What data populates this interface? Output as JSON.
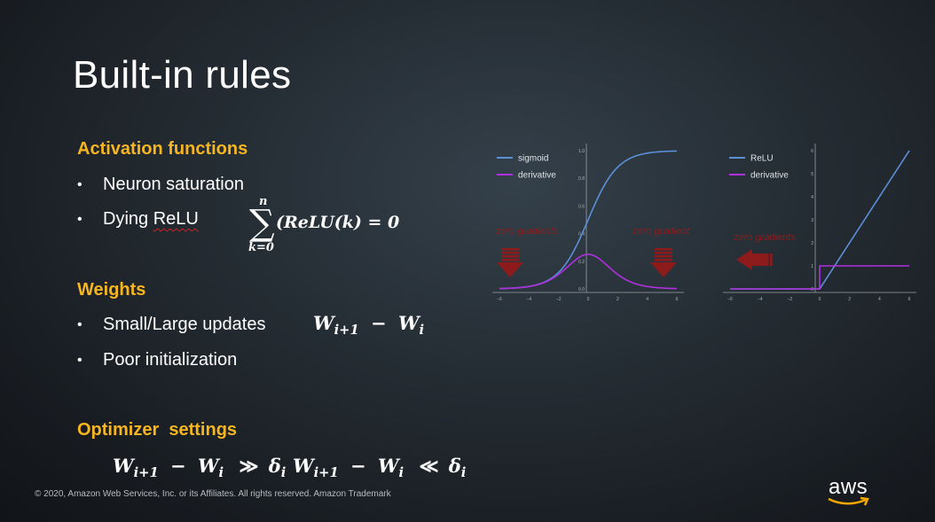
{
  "slide": {
    "title": "Built-in rules",
    "sections": {
      "activation": {
        "heading": "Activation functions",
        "bullets": [
          "Neuron saturation",
          "Dying ",
          "ReLU"
        ]
      },
      "weights": {
        "heading": "Weights",
        "bullets": [
          "Small/Large updates",
          "Poor initialization"
        ]
      },
      "optimizer": {
        "heading": "Optimizer  settings"
      }
    },
    "formulas": {
      "sum_top": "n",
      "sum_bottom": "k=0",
      "sum_body": "(ReLU(k) = 0",
      "update_w1": "W",
      "update_i1": "i+1",
      "update_minus": "−",
      "update_w2": "W",
      "update_i2": "i",
      "opt1_gg": "≫",
      "opt2_ll": "≪",
      "delta": "δ",
      "delta_i": "i"
    },
    "footer": "© 2020, Amazon Web Services, Inc. or its Affiliates. All rights reserved. Amazon Trademark",
    "logo_text": "aws"
  },
  "chart_data": [
    {
      "type": "line",
      "xlim": [
        -6,
        6
      ],
      "ylim": [
        0,
        1
      ],
      "x_ticks": [
        "−6",
        "−4",
        "−2",
        "0",
        "2",
        "4",
        "6"
      ],
      "y_ticks": [
        "0.0",
        "0.2",
        "0.4",
        "0.6",
        "0.8",
        "1.0"
      ],
      "series": [
        {
          "name": "sigmoid",
          "color": "#5b8fd6",
          "function": "sigmoid"
        },
        {
          "name": "derivative",
          "color": "#b030e0",
          "function": "sigmoid_derivative"
        }
      ],
      "legend": "top-left",
      "annotations": [
        "zero gradients",
        "zero gradients"
      ]
    },
    {
      "type": "line",
      "xlim": [
        -6,
        6
      ],
      "ylim": [
        0,
        6
      ],
      "x_ticks": [
        "−6",
        "−4",
        "−2",
        "0",
        "2",
        "4",
        "6"
      ],
      "y_ticks": [
        "0",
        "1",
        "2",
        "3",
        "4",
        "5",
        "6"
      ],
      "series": [
        {
          "name": "ReLU",
          "color": "#5b8fd6",
          "function": "relu"
        },
        {
          "name": "derivative",
          "color": "#b030e0",
          "function": "relu_derivative"
        }
      ],
      "legend": "top-left",
      "annotations": [
        "zero gradients"
      ]
    }
  ]
}
